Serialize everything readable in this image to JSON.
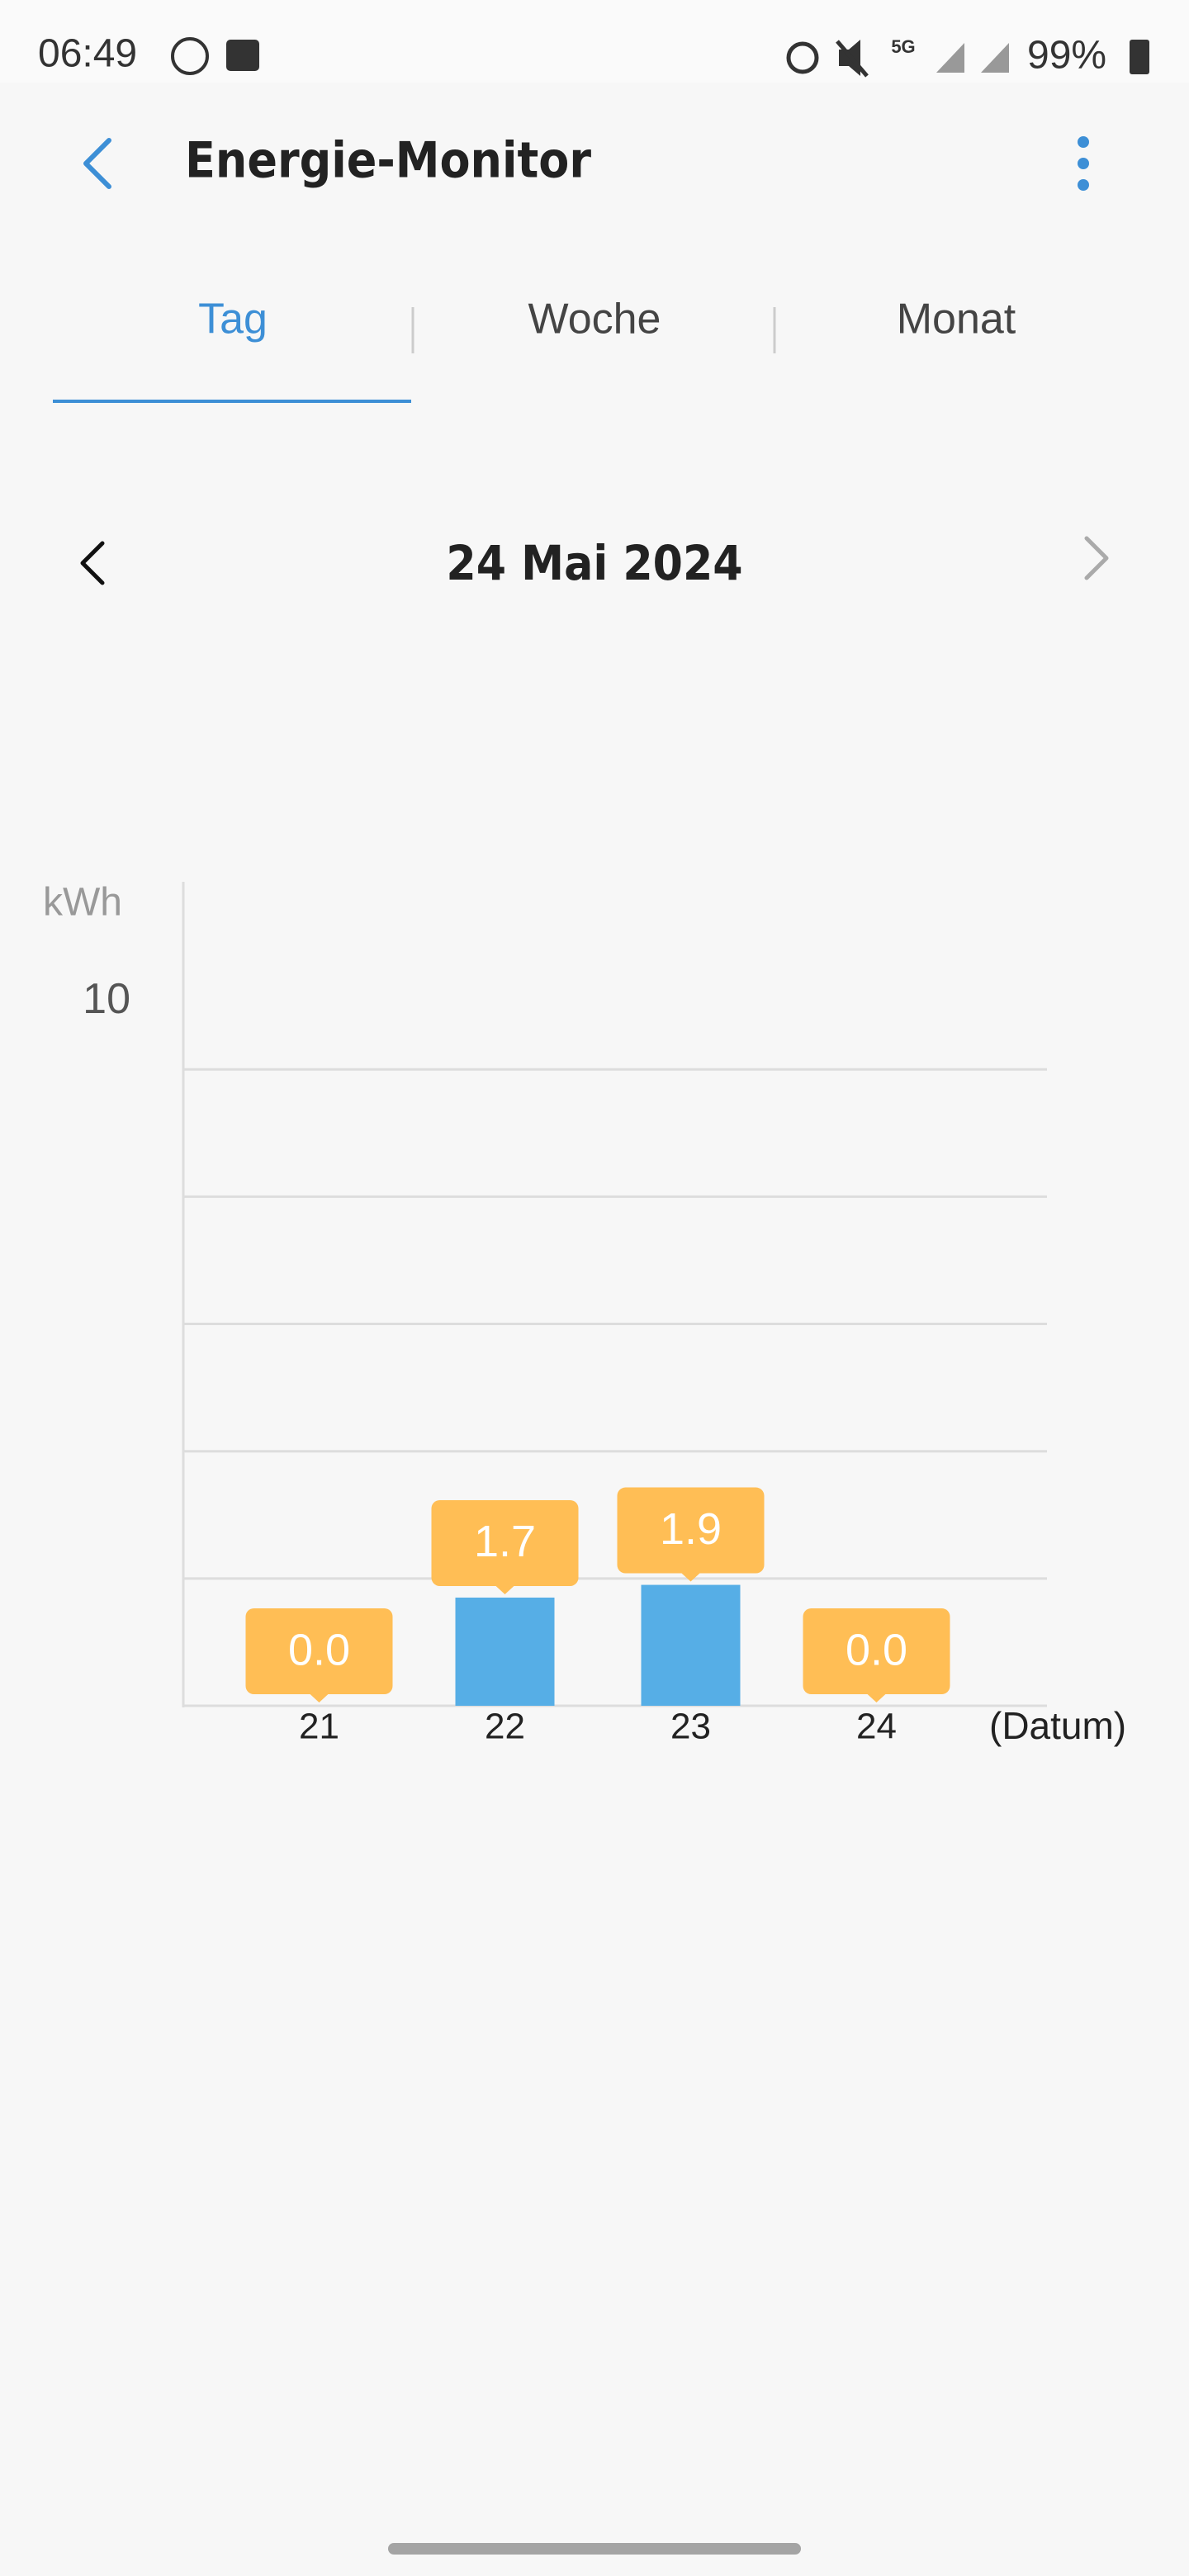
{
  "status_bar": {
    "time": "06:49",
    "network": "5G",
    "battery": "99%"
  },
  "header": {
    "title": "Energie-Monitor"
  },
  "tabs": [
    "Tag",
    "Woche",
    "Monat"
  ],
  "date": "24 Mai 2024",
  "chart_data": {
    "type": "bar",
    "y_label": "kWh",
    "x_label": "(Datum)",
    "categories": [
      "21",
      "22",
      "23",
      "24"
    ],
    "values": [
      0.0,
      1.7,
      1.9,
      0.0
    ],
    "value_labels": [
      "0.0",
      "1.7",
      "1.9",
      "0.0"
    ],
    "color": "#56aee6",
    "label_color": "#ffbe55",
    "ylim": [
      0,
      13
    ],
    "yticks": [
      10
    ],
    "grid_lines": [
      2,
      4,
      6,
      8,
      10
    ],
    "grid": true
  }
}
